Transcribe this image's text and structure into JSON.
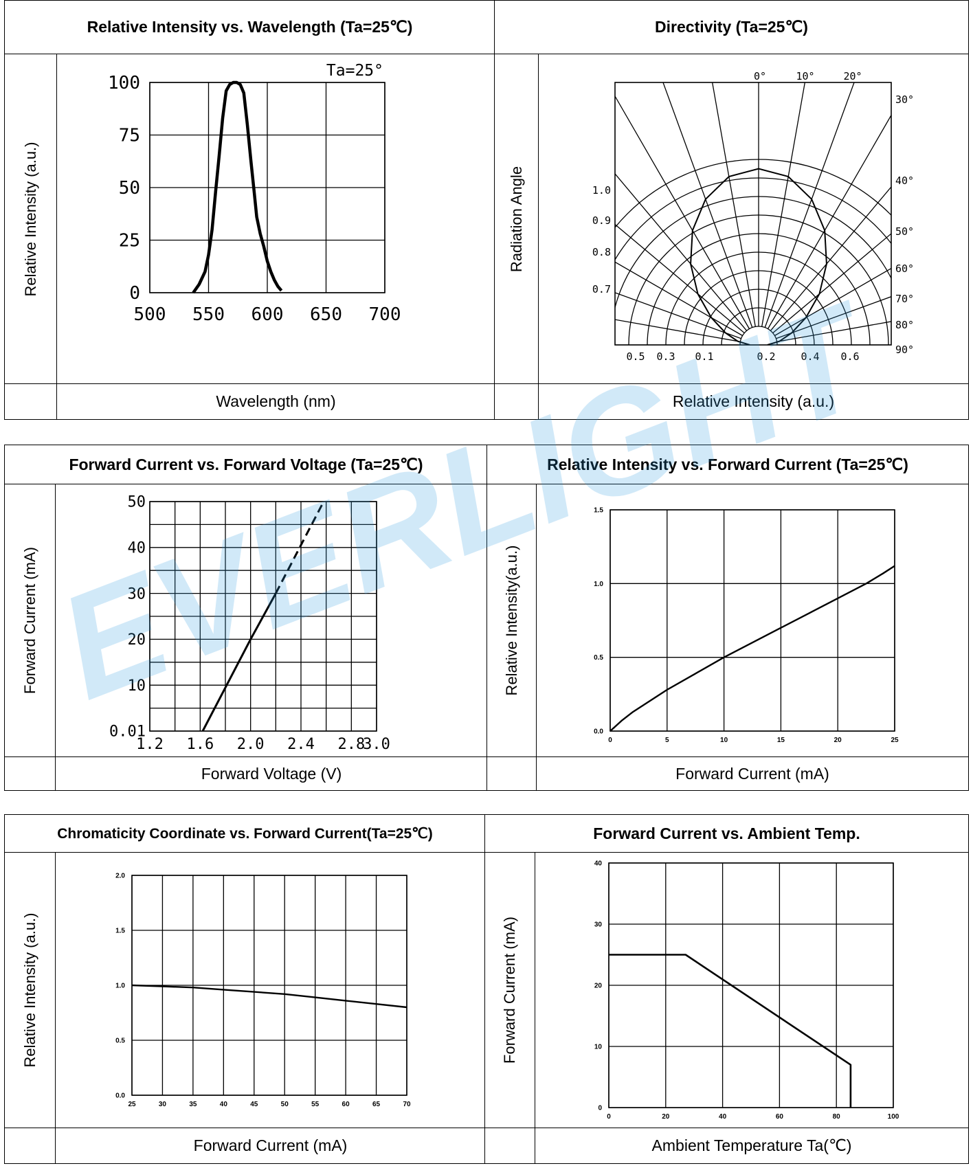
{
  "charts": {
    "spectrum": {
      "title": "Relative Intensity vs. Wavelength (Ta=25℃)",
      "ylabel": "Relative Intensity (a.u.)",
      "xlabel": "Wavelength (nm)",
      "annotation": "Ta=25°"
    },
    "directivity": {
      "title": "Directivity (Ta=25℃)",
      "ylabel": "Radiation Angle",
      "xlabel": "Relative Intensity (a.u.)"
    },
    "ifvf": {
      "title": "Forward Current vs. Forward Voltage (Ta=25℃)",
      "ylabel": "Forward Current (mA)",
      "xlabel": "Forward Voltage (V)"
    },
    "ivif": {
      "title": "Relative Intensity vs. Forward Current (Ta=25℃)",
      "ylabel": "Relative Intensity(a.u.)",
      "xlabel": "Forward Current (mA)"
    },
    "chroma": {
      "title": "Chromaticity Coordinate vs. Forward Current(Ta=25℃)",
      "ylabel": "Relative Intensity (a.u.)",
      "xlabel": "Forward Current (mA)"
    },
    "derating": {
      "title": "Forward Current vs. Ambient Temp.",
      "ylabel": "Forward Current (mA)",
      "xlabel": "Ambient Temperature Ta(℃)"
    }
  },
  "watermark": {
    "text": "EVERLIGHT",
    "color": "#2e9be0"
  },
  "chart_data": [
    {
      "id": "spectrum",
      "type": "line",
      "title": "Relative Intensity vs. Wavelength (Ta=25℃)",
      "xlabel": "Wavelength (nm)",
      "ylabel": "Relative Intensity (a.u.)",
      "xlim": [
        500,
        700
      ],
      "ylim": [
        0,
        100
      ],
      "xticks": [
        "500",
        "550",
        "600",
        "650",
        "700"
      ],
      "yticks": [
        "0",
        "25",
        "50",
        "75",
        "100"
      ],
      "annotation": "Ta=25°",
      "grid": true,
      "series": [
        {
          "x": [
            537,
            542,
            547,
            550,
            553,
            556,
            559,
            562,
            565,
            568,
            571,
            574,
            577,
            580,
            583,
            586,
            589,
            591,
            594,
            597,
            600,
            603,
            606,
            609,
            612
          ],
          "y": [
            0,
            4,
            10,
            18,
            30,
            48,
            65,
            83,
            96,
            99,
            100,
            100,
            99,
            95,
            80,
            63,
            47,
            36,
            28,
            22,
            15,
            10,
            6,
            3,
            1
          ]
        }
      ]
    },
    {
      "id": "directivity",
      "type": "polar",
      "title": "Directivity (Ta=25℃)",
      "xlabel": "Relative Intensity (a.u.)",
      "ylabel": "Radiation Angle",
      "angle_ticks": [
        "0°",
        "10°",
        "20°",
        "30°",
        "40°",
        "50°",
        "60°",
        "70°",
        "80°",
        "90°"
      ],
      "radius_ticks_left": [
        "1.0",
        "0.9",
        "0.8",
        "0.7"
      ],
      "bottom_ticks": [
        "0.5",
        "0.3",
        "0.1",
        "0.2",
        "0.4",
        "0.6"
      ],
      "series": [
        {
          "angle": [
            0,
            10,
            20,
            30,
            40,
            50,
            60,
            70,
            80,
            90
          ],
          "r": [
            1.0,
            0.97,
            0.88,
            0.75,
            0.6,
            0.45,
            0.31,
            0.2,
            0.12,
            0.05
          ]
        }
      ]
    },
    {
      "id": "ifvf",
      "type": "line",
      "title": "Forward Current vs. Forward Voltage (Ta=25℃)",
      "xlabel": "Forward Voltage (V)",
      "ylabel": "Forward Current (mA)",
      "xlim": [
        1.2,
        3.0
      ],
      "ylim": [
        0,
        50
      ],
      "xticks": [
        "1.2",
        "1.6",
        "2.0",
        "2.4",
        "2.8",
        "3.0"
      ],
      "yticks": [
        "0.01",
        "10",
        "20",
        "30",
        "40",
        "50"
      ],
      "grid": true,
      "series": [
        {
          "x": [
            1.62,
            2.0,
            2.2
          ],
          "y": [
            0,
            20,
            30
          ],
          "style": "solid"
        },
        {
          "x": [
            2.2,
            2.58
          ],
          "y": [
            30,
            50
          ],
          "style": "dashed"
        }
      ]
    },
    {
      "id": "ivif",
      "type": "line",
      "title": "Relative Intensity vs. Forward Current (Ta=25℃)",
      "xlabel": "Forward Current (mA)",
      "ylabel": "Relative Intensity(a.u.)",
      "xlim": [
        0,
        25
      ],
      "ylim": [
        0,
        1.5
      ],
      "xticks": [
        "0",
        "5",
        "10",
        "15",
        "20",
        "25"
      ],
      "yticks": [
        "0.0",
        "0.5",
        "1.0",
        "1.5"
      ],
      "grid": true,
      "series": [
        {
          "x": [
            0,
            1,
            2,
            3,
            5,
            7.5,
            10,
            12.5,
            15,
            17.5,
            20,
            22.5,
            24,
            25
          ],
          "y": [
            0,
            0.07,
            0.13,
            0.18,
            0.28,
            0.39,
            0.5,
            0.6,
            0.7,
            0.8,
            0.9,
            1.0,
            1.07,
            1.12
          ]
        }
      ]
    },
    {
      "id": "chroma",
      "type": "line",
      "title": "Chromaticity Coordinate vs. Forward Current(Ta=25℃)",
      "xlabel": "Forward Current (mA)",
      "ylabel": "Relative Intensity (a.u.)",
      "xlim": [
        25,
        70
      ],
      "ylim": [
        0,
        2.0
      ],
      "xticks": [
        "25",
        "30",
        "35",
        "40",
        "45",
        "50",
        "55",
        "60",
        "65",
        "70"
      ],
      "yticks": [
        "0.0",
        "0.5",
        "1.0",
        "1.5",
        "2.0"
      ],
      "grid": true,
      "series": [
        {
          "x": [
            25,
            30,
            35,
            40,
            45,
            50,
            55,
            60,
            65,
            70
          ],
          "y": [
            1.0,
            0.99,
            0.98,
            0.96,
            0.94,
            0.92,
            0.89,
            0.86,
            0.83,
            0.8
          ]
        }
      ]
    },
    {
      "id": "derating",
      "type": "line",
      "title": "Forward Current vs. Ambient Temp.",
      "xlabel": "Ambient Temperature Ta(℃)",
      "ylabel": "Forward Current (mA)",
      "xlim": [
        0,
        100
      ],
      "ylim": [
        0,
        40
      ],
      "xticks": [
        "0",
        "20",
        "40",
        "60",
        "80",
        "100"
      ],
      "yticks": [
        "0",
        "10",
        "20",
        "30",
        "40"
      ],
      "grid": true,
      "series": [
        {
          "x": [
            0,
            27,
            85,
            85
          ],
          "y": [
            25,
            25,
            7,
            0
          ]
        }
      ]
    }
  ]
}
